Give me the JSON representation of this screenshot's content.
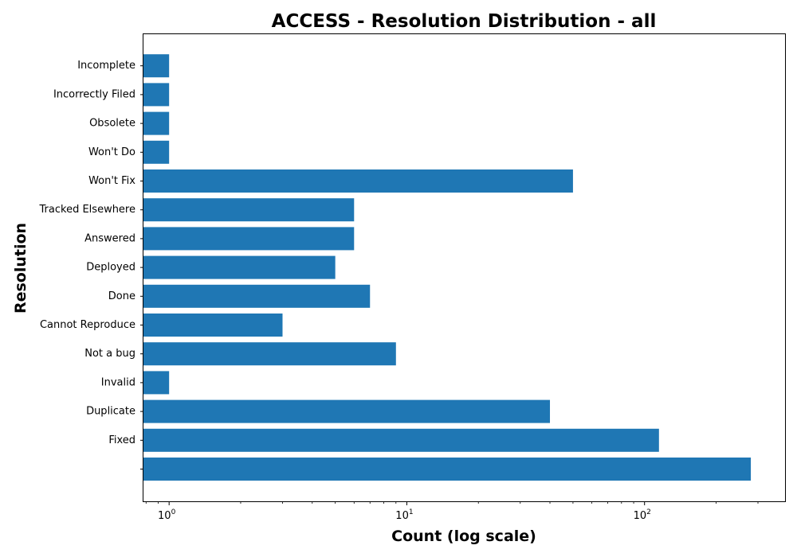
{
  "chart_data": {
    "type": "bar",
    "orientation": "horizontal",
    "title": "ACCESS - Resolution Distribution - all",
    "xlabel": "Count (log scale)",
    "ylabel": "Resolution",
    "x_scale": "log",
    "xlim": [
      0.78,
      390
    ],
    "x_ticks": [
      {
        "base": "10",
        "exp": "0",
        "value": 1
      },
      {
        "base": "10",
        "exp": "1",
        "value": 10
      },
      {
        "base": "10",
        "exp": "2",
        "value": 100
      }
    ],
    "bar_color": "#1f77b4",
    "grid": false,
    "categories": [
      "",
      "Fixed",
      "Duplicate",
      "Invalid",
      "Not a bug",
      "Cannot Reproduce",
      "Done",
      "Deployed",
      "Answered",
      "Tracked Elsewhere",
      "Won't Fix",
      "Won't Do",
      "Obsolete",
      "Incorrectly Filed",
      "Incomplete"
    ],
    "values": [
      280,
      115,
      40,
      1,
      9,
      3,
      7,
      5,
      6,
      6,
      50,
      1,
      1,
      1,
      1
    ]
  }
}
